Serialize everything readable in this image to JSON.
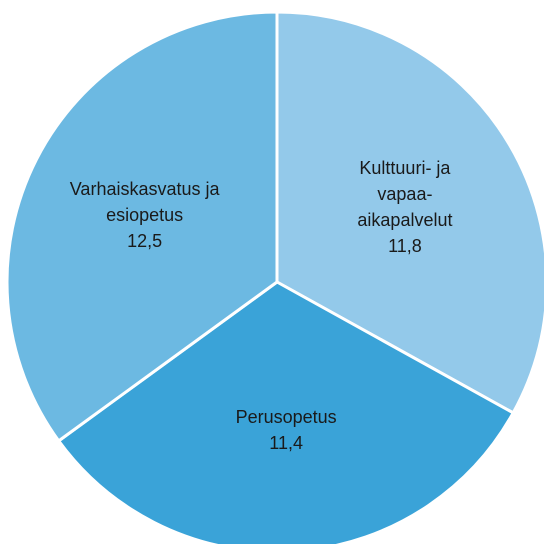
{
  "chart_data": {
    "type": "pie",
    "categories": [
      "Kulttuuri- ja vapaa-aikapalvelut",
      "Perusopetus",
      "Varhaiskasvatus ja esiopetus"
    ],
    "values": [
      11.8,
      11.4,
      12.5
    ],
    "value_labels": [
      "11,8",
      "11,4",
      "12,5"
    ],
    "colors": [
      "#93c9ea",
      "#3aa3d8",
      "#6cb9e2"
    ]
  }
}
